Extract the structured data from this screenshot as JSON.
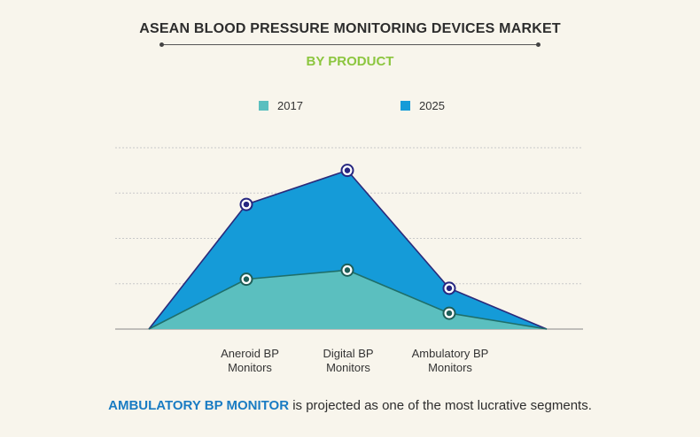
{
  "header": {
    "title": "ASEAN BLOOD PRESSURE MONITORING DEVICES MARKET",
    "subtitle": "BY PRODUCT"
  },
  "footer": {
    "highlight": "AMBULATORY BP MONITOR",
    "text": " is projected as one of the most lucrative segments."
  },
  "colors": {
    "series_2017": "#5bbfbf",
    "series_2025": "#159bd8",
    "subtitle": "#8cc63f",
    "highlight": "#1a7cc3"
  },
  "chart_data": {
    "type": "area",
    "categories": [
      "",
      "Aneroid BP\nMonitors",
      "Digital BP\nMonitors",
      "Ambulatory BP\nMonitors",
      ""
    ],
    "category_labels": [
      {
        "line1": "Aneroid BP",
        "line2": "Monitors"
      },
      {
        "line1": "Digital BP",
        "line2": "Monitors"
      },
      {
        "line1": "Ambulatory BP",
        "line2": "Monitors"
      }
    ],
    "series": [
      {
        "name": "2017",
        "values": [
          0,
          1.1,
          1.3,
          0.35,
          0
        ]
      },
      {
        "name": "2025",
        "values": [
          0,
          2.75,
          3.5,
          0.9,
          0
        ]
      }
    ],
    "ylim": [
      0,
      4
    ],
    "grid": true,
    "legend_position": "top"
  }
}
